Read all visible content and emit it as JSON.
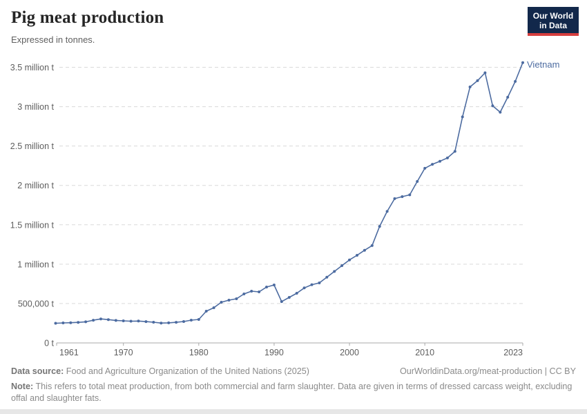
{
  "header": {
    "title": "Pig meat production",
    "subtitle": "Expressed in tonnes."
  },
  "logo": {
    "line1": "Our World",
    "line2": "in Data",
    "bg_color": "#12284b",
    "accent_color": "#d63e3e"
  },
  "chart_data": {
    "type": "line",
    "title": "Pig meat production",
    "unit": "tonnes",
    "entity": "Vietnam",
    "series_label": "Vietnam",
    "line_color": "#4c6ba0",
    "grid": "horizontal-dashed",
    "legend_position": "end-of-line",
    "ylim": [
      0,
      3500000
    ],
    "y_ticks": [
      {
        "value": 0,
        "label": "0 t"
      },
      {
        "value": 500000,
        "label": "500,000 t"
      },
      {
        "value": 1000000,
        "label": "1 million t"
      },
      {
        "value": 1500000,
        "label": "1.5 million t"
      },
      {
        "value": 2000000,
        "label": "2 million t"
      },
      {
        "value": 2500000,
        "label": "2.5 million t"
      },
      {
        "value": 3000000,
        "label": "3 million t"
      },
      {
        "value": 3500000,
        "label": "3.5 million t"
      }
    ],
    "x_ticks": [
      1961,
      1970,
      1980,
      1990,
      2000,
      2010,
      2023
    ],
    "x": [
      1961,
      1962,
      1963,
      1964,
      1965,
      1966,
      1967,
      1968,
      1969,
      1970,
      1971,
      1972,
      1973,
      1974,
      1975,
      1976,
      1977,
      1978,
      1979,
      1980,
      1981,
      1982,
      1983,
      1984,
      1985,
      1986,
      1987,
      1988,
      1989,
      1990,
      1991,
      1992,
      1993,
      1994,
      1995,
      1996,
      1997,
      1998,
      1999,
      2000,
      2001,
      2002,
      2003,
      2004,
      2005,
      2006,
      2007,
      2008,
      2009,
      2010,
      2011,
      2012,
      2013,
      2014,
      2015,
      2016,
      2017,
      2018,
      2019,
      2020,
      2021,
      2022,
      2023
    ],
    "values": [
      250000,
      254000,
      257000,
      261000,
      268000,
      288000,
      305000,
      296000,
      286000,
      280000,
      276000,
      278000,
      271000,
      263000,
      252000,
      255000,
      262000,
      272000,
      289000,
      298000,
      403000,
      447000,
      517000,
      543000,
      561000,
      622000,
      657000,
      648000,
      710000,
      736000,
      525000,
      578000,
      631000,
      698000,
      739000,
      762000,
      835000,
      908000,
      981000,
      1054000,
      1113000,
      1177000,
      1236000,
      1480000,
      1670000,
      1832000,
      1857000,
      1880000,
      2050000,
      2217000,
      2268000,
      2307000,
      2349000,
      2432000,
      2870000,
      3250000,
      3330000,
      3430000,
      3010000,
      2930000,
      3120000,
      3320000,
      3560000
    ]
  },
  "footer": {
    "source_label": "Data source:",
    "source_text": "Food and Agriculture Organization of the United Nations (2025)",
    "link_text": "OurWorldinData.org/meat-production | CC BY",
    "note_label": "Note:",
    "note_text": "This refers to total meat production, from both commercial and farm slaughter. Data are given in terms of dressed carcass weight, excluding offal and slaughter fats."
  }
}
